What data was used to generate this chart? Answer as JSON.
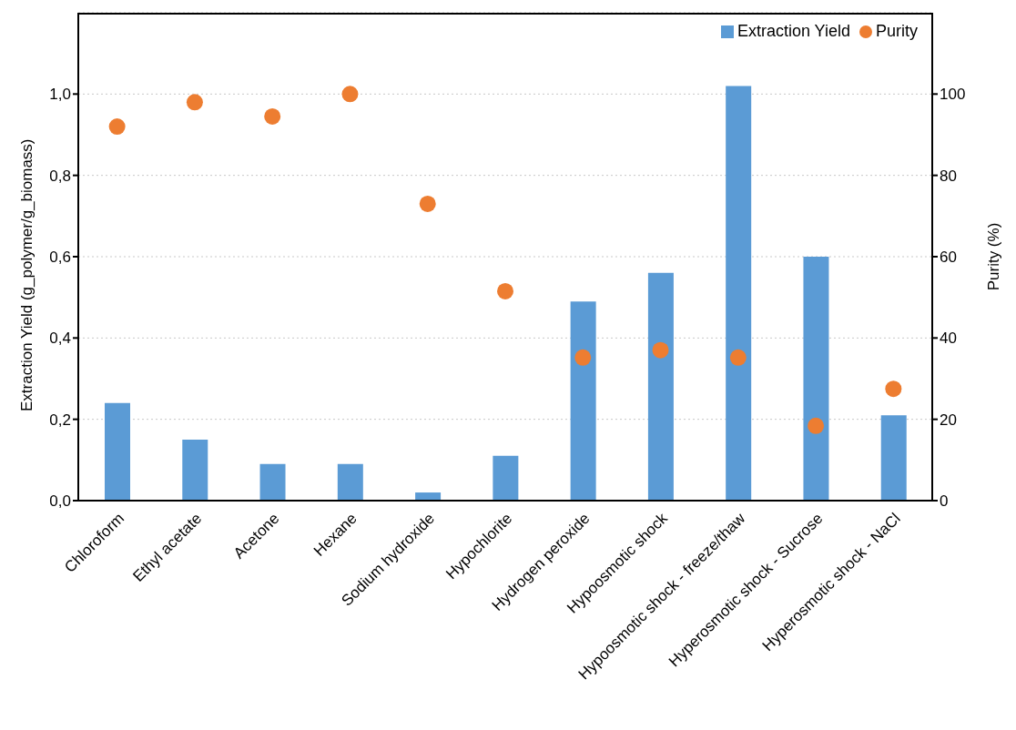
{
  "chart_data": {
    "type": "bar",
    "categories": [
      "Chloroform",
      "Ethyl acetate",
      "Acetone",
      "Hexane",
      "Sodium hydroxide",
      "Hypochlorite",
      "Hydrogen peroxide",
      "Hypoosmotic shock",
      "Hypoosmotic shock - freeze/thaw",
      "Hyperosmotic shock - Sucrose",
      "Hyperosmotic shock - NaCl"
    ],
    "series": [
      {
        "name": "Extraction Yield",
        "color": "#5b9bd5",
        "values": [
          0.24,
          0.15,
          0.09,
          0.09,
          0.02,
          0.11,
          0.49,
          0.56,
          1.02,
          0.6,
          0.21
        ]
      },
      {
        "name": "Purity",
        "type": "scatter",
        "axis": "y2",
        "color": "#ed7d31",
        "values": [
          92,
          98,
          94.5,
          100,
          73,
          51.5,
          35.2,
          37,
          35.2,
          18.4,
          27.5
        ]
      }
    ],
    "ylabel": "Extraction Yield (g_polymer/g_biomass)",
    "y2label": "Purity (%)",
    "ylim": [
      0,
      1.2
    ],
    "yticks": [
      {
        "value": 0,
        "label": "0,0"
      },
      {
        "value": 0.2,
        "label": "0,2"
      },
      {
        "value": 0.4,
        "label": "0,4"
      },
      {
        "value": 0.6,
        "label": "0,6"
      },
      {
        "value": 0.8,
        "label": "0,8"
      },
      {
        "value": 1,
        "label": "1,0"
      }
    ],
    "y2lim": [
      0,
      120
    ],
    "y2ticks": [
      0,
      20,
      40,
      60,
      80,
      100
    ],
    "grid": "y",
    "legend": "top right",
    "marker": "circle"
  }
}
